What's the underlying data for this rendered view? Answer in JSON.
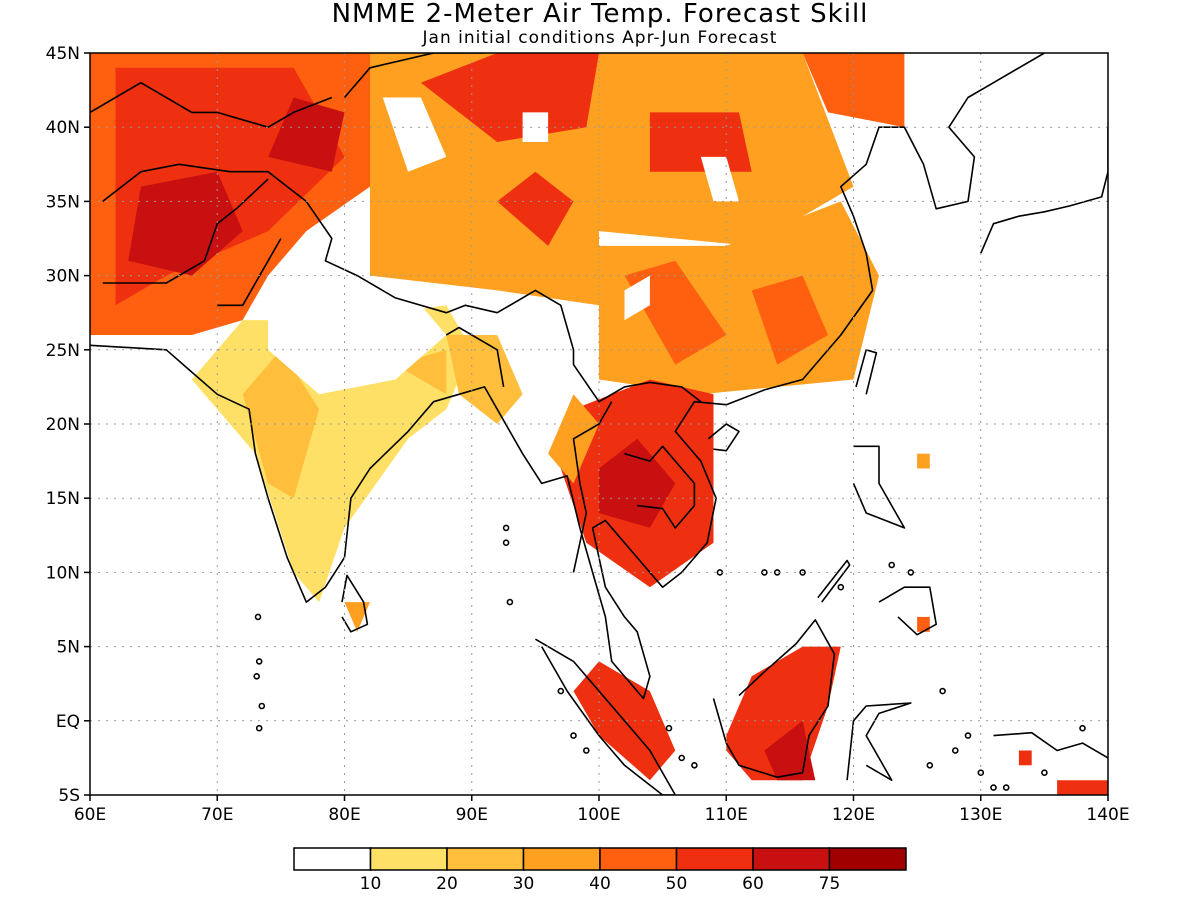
{
  "title": "NMME 2-Meter Air Temp. Forecast Skill",
  "subtitle": "Jan initial conditions  Apr-Jun Forecast",
  "map": {
    "lon_range": [
      60,
      140
    ],
    "lat_range": [
      -5,
      45
    ],
    "lon_ticks": [
      {
        "value": 60,
        "label": "60E"
      },
      {
        "value": 70,
        "label": "70E"
      },
      {
        "value": 80,
        "label": "80E"
      },
      {
        "value": 90,
        "label": "90E"
      },
      {
        "value": 100,
        "label": "100E"
      },
      {
        "value": 110,
        "label": "110E"
      },
      {
        "value": 120,
        "label": "120E"
      },
      {
        "value": 130,
        "label": "130E"
      },
      {
        "value": 140,
        "label": "140E"
      }
    ],
    "lat_ticks": [
      {
        "value": 45,
        "label": "45N"
      },
      {
        "value": 40,
        "label": "40N"
      },
      {
        "value": 35,
        "label": "35N"
      },
      {
        "value": 30,
        "label": "30N"
      },
      {
        "value": 25,
        "label": "25N"
      },
      {
        "value": 20,
        "label": "20N"
      },
      {
        "value": 15,
        "label": "15N"
      },
      {
        "value": 10,
        "label": "10N"
      },
      {
        "value": 5,
        "label": "5N"
      },
      {
        "value": 0,
        "label": "EQ"
      },
      {
        "value": -5,
        "label": "5S"
      }
    ],
    "grid": true
  },
  "colorbar": {
    "colors": [
      "#ffffff",
      "#ffe066",
      "#ffbe3c",
      "#ffa020",
      "#ff6010",
      "#ee3010",
      "#c81010",
      "#a00000"
    ],
    "ticks": [
      "10",
      "20",
      "30",
      "40",
      "50",
      "60",
      "75"
    ]
  },
  "chart_data": {
    "type": "heatmap",
    "variable": "2-Meter Air Temp. Forecast Skill",
    "levels": [
      10,
      20,
      30,
      40,
      50,
      60,
      75
    ],
    "regions": [
      {
        "lon": [
          60,
          82
        ],
        "lat": [
          26,
          45
        ],
        "level": 6
      },
      {
        "lon": [
          82,
          100
        ],
        "lat": [
          35,
          45
        ],
        "level": 5
      },
      {
        "lon": [
          100,
          115
        ],
        "lat": [
          35,
          45
        ],
        "level": 4
      },
      {
        "lon": [
          100,
          122
        ],
        "lat": [
          22,
          35
        ],
        "level": 4
      },
      {
        "lon": [
          72,
          90
        ],
        "lat": [
          8,
          25
        ],
        "level": 2
      },
      {
        "lon": [
          98,
          109
        ],
        "lat": [
          11,
          22
        ],
        "level": 6
      },
      {
        "lon": [
          109,
          118
        ],
        "lat": [
          -3,
          5
        ],
        "level": 6
      },
      {
        "lon": [
          98,
          106
        ],
        "lat": [
          -3,
          3
        ],
        "level": 6
      },
      {
        "lon": [
          136,
          140
        ],
        "lat": [
          -5,
          -3
        ],
        "level": 6
      }
    ]
  }
}
